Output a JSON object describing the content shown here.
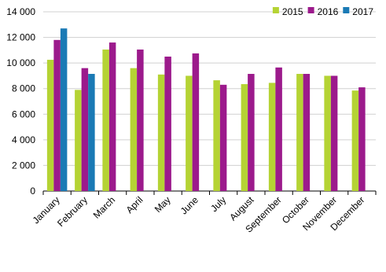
{
  "chart_data": {
    "type": "bar",
    "categories": [
      "January",
      "February",
      "March",
      "April",
      "May",
      "June",
      "July",
      "August",
      "September",
      "October",
      "November",
      "December"
    ],
    "series": [
      {
        "name": "2015",
        "color": "#b5d334",
        "values": [
          10250,
          7900,
          11050,
          9600,
          9100,
          9000,
          8650,
          8350,
          8450,
          9150,
          9000,
          7850
        ]
      },
      {
        "name": "2016",
        "color": "#9c1a8c",
        "values": [
          11800,
          9600,
          11600,
          11050,
          10500,
          10750,
          8300,
          9150,
          9650,
          9150,
          9000,
          8100
        ]
      },
      {
        "name": "2017",
        "color": "#1a7ab5",
        "values": [
          12700,
          9150,
          null,
          null,
          null,
          null,
          null,
          null,
          null,
          null,
          null,
          null
        ]
      }
    ],
    "ylim": [
      0,
      14000
    ],
    "yticks": [
      0,
      {
        "value": 2000,
        "label": "2 000"
      },
      {
        "value": 4000,
        "label": "4 000"
      },
      {
        "value": 6000,
        "label": "6 000"
      },
      {
        "value": 8000,
        "label": "8 000"
      },
      {
        "value": 10000,
        "label": "10 000"
      },
      {
        "value": 12000,
        "label": "12 000"
      },
      {
        "value": 14000,
        "label": "14 000"
      }
    ],
    "grid": true,
    "legend": "top-right"
  }
}
